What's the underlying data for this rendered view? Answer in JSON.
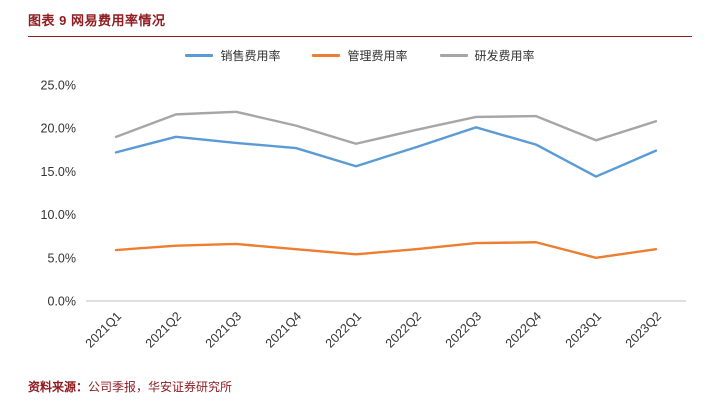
{
  "header": {
    "title": "图表 9 网易费用率情况"
  },
  "footer": {
    "source_label": "资料来源：",
    "source_text": "公司季报，华安证券研究所"
  },
  "colors": {
    "accent_red": "#8F1D21",
    "axis_line": "#BFBFBF",
    "series_blue": "#5B9BD5",
    "series_orange": "#ED7D31",
    "series_gray": "#A6A6A6"
  },
  "chart_data": {
    "type": "line",
    "title": "图表 9 网易费用率情况",
    "categories": [
      "2021Q1",
      "2021Q2",
      "2021Q3",
      "2021Q4",
      "2022Q1",
      "2022Q2",
      "2022Q3",
      "2022Q4",
      "2023Q1",
      "2023Q2"
    ],
    "series": [
      {
        "name": "销售费用率",
        "color": "#5B9BD5",
        "values": [
          17.2,
          19.0,
          18.3,
          17.7,
          15.6,
          17.8,
          20.1,
          18.1,
          14.4,
          17.4
        ]
      },
      {
        "name": "管理费用率",
        "color": "#ED7D31",
        "values": [
          5.9,
          6.4,
          6.6,
          6.0,
          5.4,
          6.0,
          6.7,
          6.8,
          5.0,
          6.0
        ]
      },
      {
        "name": "研发费用率",
        "color": "#A6A6A6",
        "values": [
          19.0,
          21.6,
          21.9,
          20.3,
          18.2,
          19.8,
          21.3,
          21.4,
          18.6,
          20.8
        ]
      }
    ],
    "ylim": [
      0,
      25
    ],
    "ytick_step": 5,
    "ytick_format": "one_decimal_percent",
    "grid": false,
    "legend_position": "top",
    "xlabel": "",
    "ylabel": ""
  }
}
